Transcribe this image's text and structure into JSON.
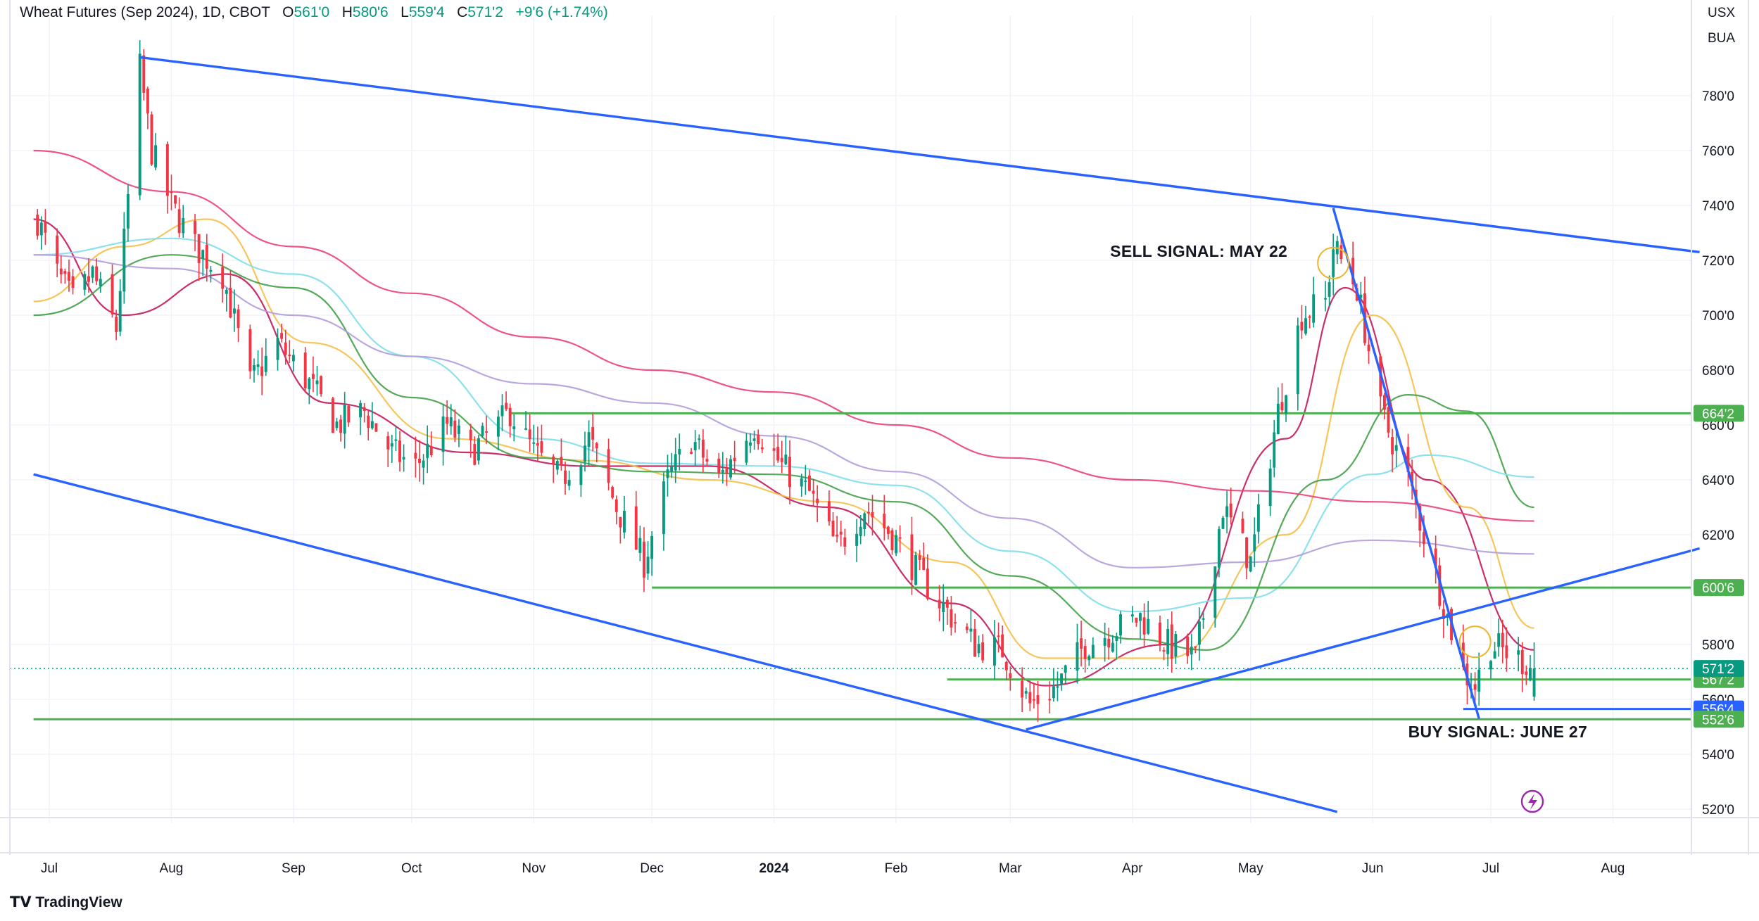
{
  "header": {
    "symbol": "Wheat Futures (Sep 2024), 1D, CBOT",
    "open_label": "O",
    "open": "561'0",
    "high_label": "H",
    "high": "580'6",
    "low_label": "L",
    "low": "559'4",
    "close_label": "C",
    "close": "571'2",
    "change": "+9'6 (+1.74%)"
  },
  "units": {
    "currency": "USX",
    "unit": "BUA"
  },
  "branding": {
    "name": "TradingView"
  },
  "colors": {
    "up": "#089981",
    "down": "#f23645",
    "trendline": "#2962ff",
    "level": "#4caf50"
  },
  "chart_data": {
    "type": "candlestick",
    "title": "Wheat Futures (Sep 2024), 1D, CBOT",
    "xlabels": [
      "Jul",
      "Aug",
      "Sep",
      "Oct",
      "Nov",
      "Dec",
      "2024",
      "Feb",
      "Mar",
      "Apr",
      "May",
      "Jun",
      "Jul",
      "Aug"
    ],
    "yticks": [
      "520'0",
      "540'0",
      "560'0",
      "580'0",
      "600'0",
      "620'0",
      "640'0",
      "660'0",
      "680'0",
      "700'0",
      "720'0",
      "740'0",
      "760'0",
      "780'0"
    ],
    "ylim": [
      514,
      801
    ],
    "close_path": [
      [
        "2023-06-28",
        735
      ],
      [
        "2023-07-03",
        715
      ],
      [
        "2023-07-07",
        705
      ],
      [
        "2023-07-12",
        715
      ],
      [
        "2023-07-18",
        695
      ],
      [
        "2023-07-24",
        790
      ],
      [
        "2023-07-27",
        760
      ],
      [
        "2023-08-01",
        740
      ],
      [
        "2023-08-07",
        725
      ],
      [
        "2023-08-14",
        715
      ],
      [
        "2023-08-21",
        675
      ],
      [
        "2023-08-28",
        690
      ],
      [
        "2023-09-05",
        675
      ],
      [
        "2023-09-12",
        660
      ],
      [
        "2023-09-19",
        665
      ],
      [
        "2023-09-26",
        650
      ],
      [
        "2023-10-02",
        645
      ],
      [
        "2023-10-10",
        660
      ],
      [
        "2023-10-16",
        650
      ],
      [
        "2023-10-23",
        660
      ],
      [
        "2023-10-26",
        665
      ],
      [
        "2023-11-01",
        650
      ],
      [
        "2023-11-08",
        640
      ],
      [
        "2023-11-15",
        655
      ],
      [
        "2023-11-22",
        630
      ],
      [
        "2023-11-29",
        610
      ],
      [
        "2023-12-05",
        640
      ],
      [
        "2023-12-11",
        655
      ],
      [
        "2023-12-18",
        640
      ],
      [
        "2023-12-27",
        660
      ],
      [
        "2024-01-03",
        645
      ],
      [
        "2024-01-10",
        635
      ],
      [
        "2024-01-17",
        615
      ],
      [
        "2024-01-24",
        630
      ],
      [
        "2024-01-31",
        620
      ],
      [
        "2024-02-07",
        605
      ],
      [
        "2024-02-14",
        592
      ],
      [
        "2024-02-21",
        580
      ],
      [
        "2024-02-28",
        578
      ],
      [
        "2024-03-06",
        558
      ],
      [
        "2024-03-13",
        565
      ],
      [
        "2024-03-20",
        580
      ],
      [
        "2024-03-27",
        585
      ],
      [
        "2024-04-03",
        590
      ],
      [
        "2024-04-10",
        580
      ],
      [
        "2024-04-17",
        575
      ],
      [
        "2024-04-24",
        630
      ],
      [
        "2024-05-01",
        610
      ],
      [
        "2024-05-08",
        665
      ],
      [
        "2024-05-14",
        700
      ],
      [
        "2024-05-20",
        705
      ],
      [
        "2024-05-22",
        725
      ],
      [
        "2024-05-28",
        710
      ],
      [
        "2024-06-03",
        665
      ],
      [
        "2024-06-10",
        640
      ],
      [
        "2024-06-17",
        605
      ],
      [
        "2024-06-24",
        570
      ],
      [
        "2024-06-27",
        565
      ],
      [
        "2024-07-01",
        580
      ],
      [
        "2024-07-08",
        575
      ],
      [
        "2024-07-12",
        571
      ]
    ],
    "last": {
      "date": "2024-07-12",
      "open": 561.0,
      "high": 580.75,
      "low": 559.5,
      "close": 571.25
    },
    "horizontal_levels": [
      {
        "price": 664.25,
        "label": "664'2",
        "from": "2023-10-26",
        "color": "#4caf50"
      },
      {
        "price": 600.75,
        "label": "600'6",
        "from": "2023-12-01",
        "color": "#4caf50"
      },
      {
        "price": 567.25,
        "label": "567'2",
        "from": "2024-02-14",
        "color": "#4caf50"
      },
      {
        "price": 556.5,
        "label": "556'4",
        "from": "2024-06-24",
        "color": "#2962ff"
      },
      {
        "price": 552.75,
        "label": "552'6",
        "from": "2023-06-27",
        "color": "#4caf50"
      }
    ],
    "last_price_tag": {
      "price": 571.25,
      "label": "571'2",
      "color": "#089981"
    },
    "trendlines": [
      {
        "from": [
          "2023-07-24",
          794
        ],
        "to": [
          "2024-08-23",
          723
        ]
      },
      {
        "from": [
          "2023-06-27",
          642
        ],
        "to": [
          "2024-05-23",
          519
        ]
      },
      {
        "from": [
          "2024-03-05",
          549
        ],
        "to": [
          "2024-08-23",
          615
        ]
      },
      {
        "from": [
          "2024-05-22",
          739
        ],
        "to": [
          "2024-06-28",
          553
        ]
      }
    ],
    "annotations": [
      {
        "text": "SELL SIGNAL: MAY 22",
        "date": "2024-05-22",
        "price": 725
      },
      {
        "text": "BUY SIGNAL: JUNE 27",
        "date": "2024-06-27",
        "price": 557
      }
    ],
    "moving_averages": [
      {
        "color": "#c2185b",
        "points": [
          [
            "2023-06-27",
            735
          ],
          [
            "2023-07-20",
            700
          ],
          [
            "2023-08-15",
            715
          ],
          [
            "2023-09-10",
            668
          ],
          [
            "2023-10-15",
            650
          ],
          [
            "2023-11-15",
            645
          ],
          [
            "2023-12-15",
            645
          ],
          [
            "2024-01-15",
            630
          ],
          [
            "2024-02-15",
            595
          ],
          [
            "2024-03-10",
            565
          ],
          [
            "2024-04-10",
            580
          ],
          [
            "2024-05-10",
            655
          ],
          [
            "2024-05-25",
            710
          ],
          [
            "2024-06-15",
            640
          ],
          [
            "2024-07-12",
            578
          ]
        ]
      },
      {
        "color": "#f5c04a",
        "points": [
          [
            "2023-06-27",
            705
          ],
          [
            "2023-07-20",
            725
          ],
          [
            "2023-08-10",
            735
          ],
          [
            "2023-09-05",
            690
          ],
          [
            "2023-10-10",
            655
          ],
          [
            "2023-11-15",
            647
          ],
          [
            "2023-12-15",
            640
          ],
          [
            "2024-01-15",
            632
          ],
          [
            "2024-02-15",
            610
          ],
          [
            "2024-03-10",
            575
          ],
          [
            "2024-04-10",
            575
          ],
          [
            "2024-05-10",
            620
          ],
          [
            "2024-06-01",
            700
          ],
          [
            "2024-06-25",
            630
          ],
          [
            "2024-07-12",
            586
          ]
        ]
      },
      {
        "color": "#43a047",
        "points": [
          [
            "2023-06-27",
            700
          ],
          [
            "2023-08-01",
            722
          ],
          [
            "2023-09-01",
            710
          ],
          [
            "2023-10-01",
            670
          ],
          [
            "2023-11-01",
            648
          ],
          [
            "2023-12-01",
            643
          ],
          [
            "2024-01-01",
            642
          ],
          [
            "2024-02-01",
            632
          ],
          [
            "2024-03-01",
            605
          ],
          [
            "2024-04-01",
            582
          ],
          [
            "2024-04-20",
            578
          ],
          [
            "2024-05-20",
            640
          ],
          [
            "2024-06-10",
            671
          ],
          [
            "2024-06-25",
            665
          ],
          [
            "2024-07-12",
            630
          ]
        ]
      },
      {
        "color": "#80deea",
        "points": [
          [
            "2023-06-27",
            722
          ],
          [
            "2023-08-01",
            728
          ],
          [
            "2023-09-01",
            715
          ],
          [
            "2023-10-01",
            685
          ],
          [
            "2023-11-01",
            655
          ],
          [
            "2023-12-01",
            646
          ],
          [
            "2024-01-01",
            645
          ],
          [
            "2024-02-01",
            638
          ],
          [
            "2024-03-01",
            614
          ],
          [
            "2024-04-01",
            592
          ],
          [
            "2024-05-01",
            597
          ],
          [
            "2024-06-01",
            642
          ],
          [
            "2024-06-15",
            649
          ],
          [
            "2024-07-12",
            641
          ]
        ]
      },
      {
        "color": "#b39ddb",
        "points": [
          [
            "2023-06-27",
            722
          ],
          [
            "2023-08-01",
            717
          ],
          [
            "2023-09-01",
            700
          ],
          [
            "2023-10-01",
            685
          ],
          [
            "2023-11-01",
            675
          ],
          [
            "2023-12-01",
            668
          ],
          [
            "2024-01-01",
            656
          ],
          [
            "2024-02-01",
            643
          ],
          [
            "2024-03-01",
            626
          ],
          [
            "2024-04-01",
            608
          ],
          [
            "2024-05-01",
            610
          ],
          [
            "2024-06-01",
            618
          ],
          [
            "2024-07-12",
            613
          ]
        ]
      },
      {
        "color": "#ec407a",
        "points": [
          [
            "2023-06-27",
            760
          ],
          [
            "2023-08-01",
            745
          ],
          [
            "2023-09-01",
            725
          ],
          [
            "2023-10-01",
            708
          ],
          [
            "2023-11-01",
            692
          ],
          [
            "2023-12-01",
            680
          ],
          [
            "2024-01-01",
            672
          ],
          [
            "2024-02-01",
            660
          ],
          [
            "2024-03-01",
            648
          ],
          [
            "2024-04-01",
            640
          ],
          [
            "2024-05-01",
            636
          ],
          [
            "2024-06-01",
            632
          ],
          [
            "2024-07-12",
            625
          ]
        ]
      }
    ]
  }
}
